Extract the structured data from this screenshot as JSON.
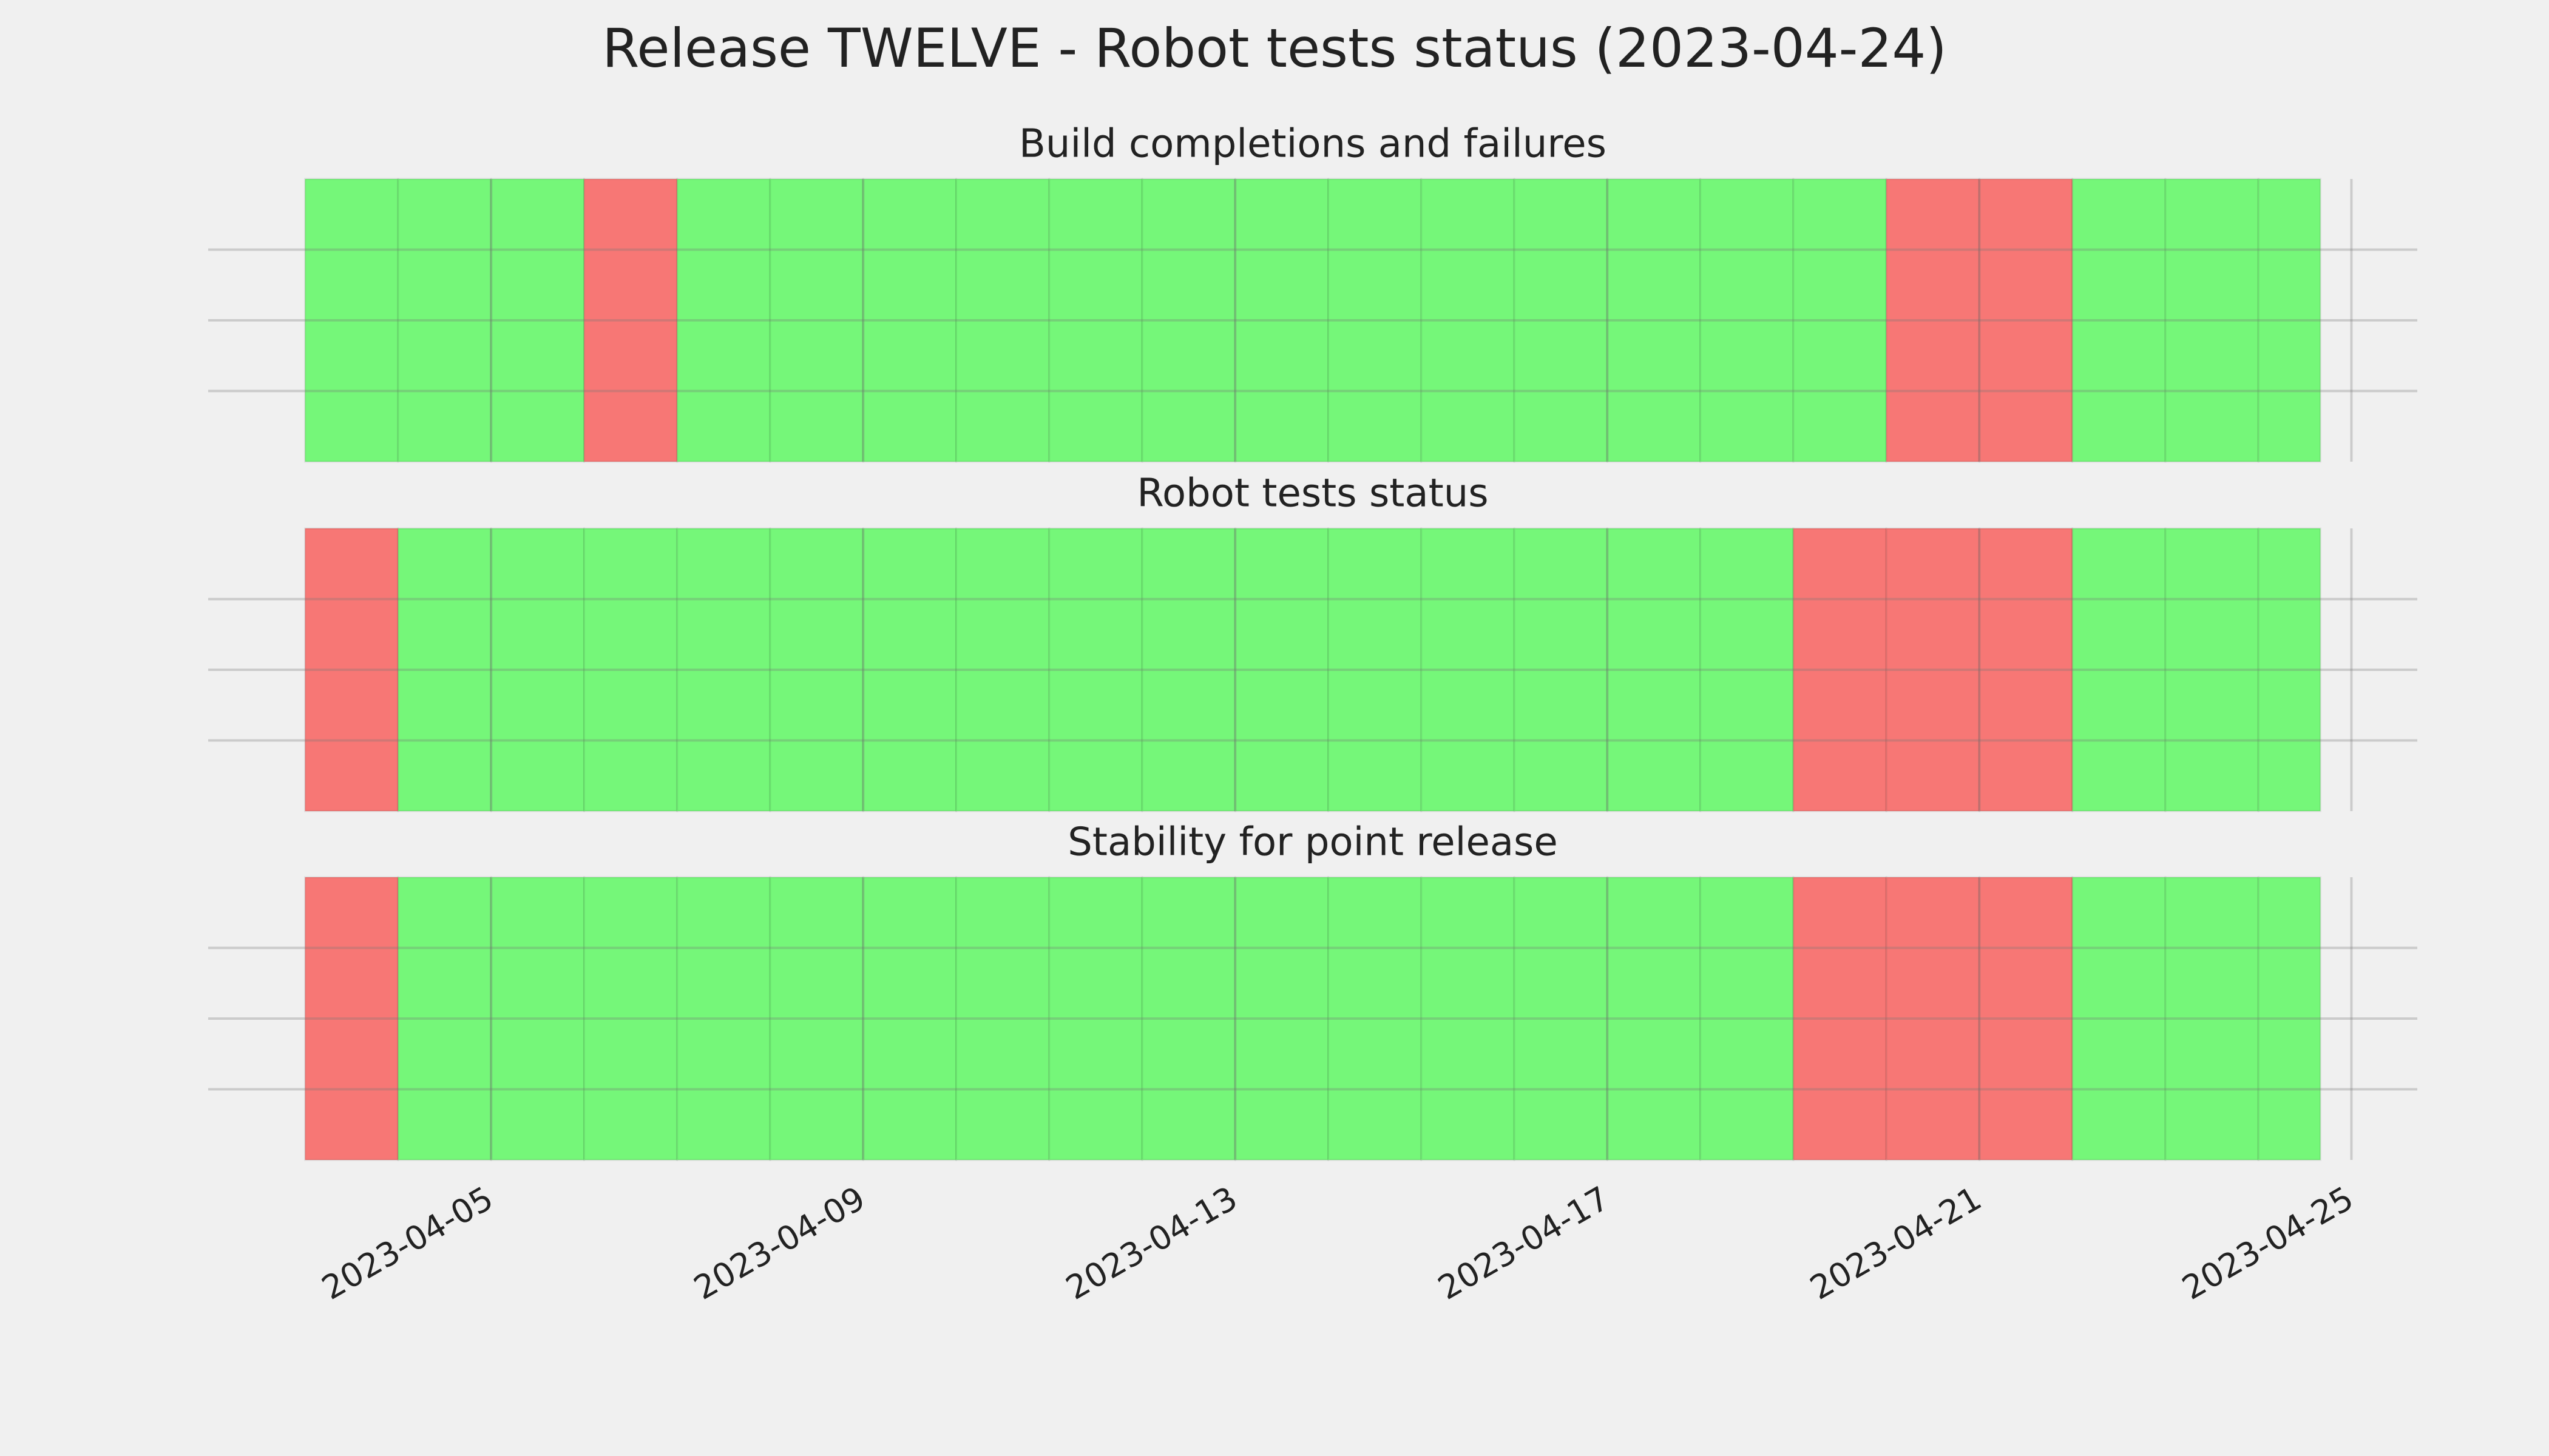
{
  "title": "Release TWELVE - Robot tests status (2023-04-24)",
  "chart_data": [
    {
      "type": "timeline",
      "title": "Build completions and failures",
      "x": [
        "2023-04-03",
        "2023-04-04",
        "2023-04-05",
        "2023-04-06",
        "2023-04-07",
        "2023-04-08",
        "2023-04-09",
        "2023-04-10",
        "2023-04-11",
        "2023-04-12",
        "2023-04-13",
        "2023-04-14",
        "2023-04-15",
        "2023-04-16",
        "2023-04-17",
        "2023-04-18",
        "2023-04-19",
        "2023-04-20",
        "2023-04-21",
        "2023-04-22",
        "2023-04-23",
        "2023-04-24"
      ],
      "end": "2023-04-24T16:00",
      "values": [
        1,
        1,
        1,
        1,
        1,
        1,
        1,
        1,
        1,
        1,
        1,
        1,
        1,
        1,
        1,
        1,
        1,
        1,
        1,
        1,
        1,
        1
      ],
      "colors": [
        "#75f779",
        "#75f779",
        "#75f779",
        "#f77775",
        "#75f779",
        "#75f779",
        "#75f779",
        "#75f779",
        "#75f779",
        "#75f779",
        "#75f779",
        "#75f779",
        "#75f779",
        "#75f779",
        "#75f779",
        "#75f779",
        "#75f779",
        "#f77775",
        "#f77775",
        "#75f779",
        "#75f779",
        "#75f779"
      ],
      "xlim": [
        "2023-04-01T23:00",
        "2023-04-25T17:00"
      ],
      "xticks": [
        "2023-04-05",
        "2023-04-09",
        "2023-04-13",
        "2023-04-17",
        "2023-04-21",
        "2023-04-25"
      ],
      "show_xtick_labels": false,
      "ylim": [
        0,
        1
      ],
      "yticks": [
        0.25,
        0.5,
        0.75
      ],
      "grid": true
    },
    {
      "type": "timeline",
      "title": "Robot tests status",
      "x": [
        "2023-04-03",
        "2023-04-04",
        "2023-04-05",
        "2023-04-06",
        "2023-04-07",
        "2023-04-08",
        "2023-04-09",
        "2023-04-10",
        "2023-04-11",
        "2023-04-12",
        "2023-04-13",
        "2023-04-14",
        "2023-04-15",
        "2023-04-16",
        "2023-04-17",
        "2023-04-18",
        "2023-04-19",
        "2023-04-20",
        "2023-04-21",
        "2023-04-22",
        "2023-04-23",
        "2023-04-24"
      ],
      "end": "2023-04-24T16:00",
      "values": [
        1,
        1,
        1,
        1,
        1,
        1,
        1,
        1,
        1,
        1,
        1,
        1,
        1,
        1,
        1,
        1,
        1,
        1,
        1,
        1,
        1,
        1
      ],
      "colors": [
        "#f77775",
        "#75f779",
        "#75f779",
        "#75f779",
        "#75f779",
        "#75f779",
        "#75f779",
        "#75f779",
        "#75f779",
        "#75f779",
        "#75f779",
        "#75f779",
        "#75f779",
        "#75f779",
        "#75f779",
        "#75f779",
        "#f77775",
        "#f77775",
        "#f77775",
        "#75f779",
        "#75f779",
        "#75f779"
      ],
      "xlim": [
        "2023-04-01T23:00",
        "2023-04-25T17:00"
      ],
      "xticks": [
        "2023-04-05",
        "2023-04-09",
        "2023-04-13",
        "2023-04-17",
        "2023-04-21",
        "2023-04-25"
      ],
      "show_xtick_labels": false,
      "ylim": [
        0,
        1
      ],
      "yticks": [
        0.25,
        0.5,
        0.75
      ],
      "grid": true
    },
    {
      "type": "timeline",
      "title": "Stability for point release",
      "x": [
        "2023-04-03",
        "2023-04-04",
        "2023-04-05",
        "2023-04-06",
        "2023-04-07",
        "2023-04-08",
        "2023-04-09",
        "2023-04-10",
        "2023-04-11",
        "2023-04-12",
        "2023-04-13",
        "2023-04-14",
        "2023-04-15",
        "2023-04-16",
        "2023-04-17",
        "2023-04-18",
        "2023-04-19",
        "2023-04-20",
        "2023-04-21",
        "2023-04-22",
        "2023-04-23",
        "2023-04-24"
      ],
      "end": "2023-04-24T16:00",
      "values": [
        1,
        1,
        1,
        1,
        1,
        1,
        1,
        1,
        1,
        1,
        1,
        1,
        1,
        1,
        1,
        1,
        1,
        1,
        1,
        1,
        1,
        1
      ],
      "colors": [
        "#f77775",
        "#75f779",
        "#75f779",
        "#75f779",
        "#75f779",
        "#75f779",
        "#75f779",
        "#75f779",
        "#75f779",
        "#75f779",
        "#75f779",
        "#75f779",
        "#75f779",
        "#75f779",
        "#75f779",
        "#75f779",
        "#f77775",
        "#f77775",
        "#f77775",
        "#75f779",
        "#75f779",
        "#75f779"
      ],
      "xlim": [
        "2023-04-01T23:00",
        "2023-04-25T17:00"
      ],
      "xticks": [
        "2023-04-05",
        "2023-04-09",
        "2023-04-13",
        "2023-04-17",
        "2023-04-21",
        "2023-04-25"
      ],
      "show_xtick_labels": true,
      "ylim": [
        0,
        1
      ],
      "yticks": [
        0.25,
        0.5,
        0.75
      ],
      "grid": true
    }
  ]
}
